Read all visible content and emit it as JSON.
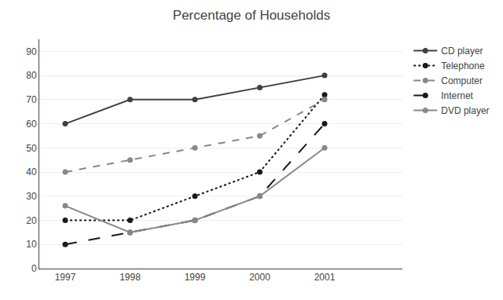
{
  "chart_data": {
    "type": "line",
    "title": "Percentage of Households",
    "x": [
      1997,
      1998,
      1999,
      2000,
      2001
    ],
    "xlim": [
      1996.6,
      2002.2
    ],
    "xticks": [
      1997,
      1998,
      1999,
      2000,
      2001
    ],
    "ylim": [
      0,
      95
    ],
    "yticks": [
      0,
      10,
      20,
      30,
      40,
      50,
      60,
      70,
      80,
      90
    ],
    "grid": true,
    "legend": "right",
    "series": [
      {
        "name": "CD player",
        "color": "#404040",
        "line_style": "solid",
        "marker": "circle",
        "values": [
          60,
          70,
          70,
          75,
          80
        ]
      },
      {
        "name": "Telephone",
        "color": "#1a1a1a",
        "line_style": "dotted",
        "marker": "circle",
        "values": [
          20,
          20,
          30,
          40,
          72
        ]
      },
      {
        "name": "Computer",
        "color": "#888888",
        "line_style": "dashed",
        "marker": "circle",
        "values": [
          40,
          45,
          50,
          55,
          70
        ]
      },
      {
        "name": "Internet",
        "color": "#1a1a1a",
        "line_style": "longdash",
        "marker": "circle",
        "values": [
          10,
          15,
          20,
          30,
          60
        ]
      },
      {
        "name": "DVD player",
        "color": "#888888",
        "line_style": "solid",
        "marker": "circle",
        "values": [
          26,
          15,
          20,
          30,
          50
        ]
      }
    ]
  }
}
